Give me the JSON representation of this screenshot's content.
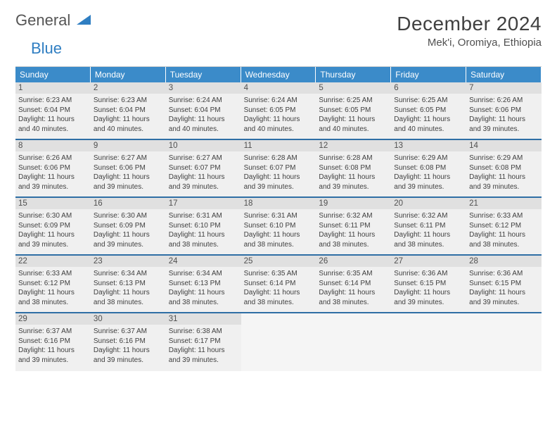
{
  "logo": {
    "general": "General",
    "blue": "Blue"
  },
  "title": "December 2024",
  "location": "Mek'i, Oromiya, Ethiopia",
  "colors": {
    "header_bg": "#3b8bc9",
    "header_text": "#ffffff",
    "cell_bg": "#f0f0f0",
    "daynum_bg": "#e0e0e0",
    "divider": "#2f6fa5",
    "logo_blue": "#2f7ec2"
  },
  "day_labels": [
    "Sunday",
    "Monday",
    "Tuesday",
    "Wednesday",
    "Thursday",
    "Friday",
    "Saturday"
  ],
  "weeks": [
    [
      {
        "n": "1",
        "sunrise": "6:23 AM",
        "sunset": "6:04 PM",
        "daylight": "11 hours and 40 minutes."
      },
      {
        "n": "2",
        "sunrise": "6:23 AM",
        "sunset": "6:04 PM",
        "daylight": "11 hours and 40 minutes."
      },
      {
        "n": "3",
        "sunrise": "6:24 AM",
        "sunset": "6:04 PM",
        "daylight": "11 hours and 40 minutes."
      },
      {
        "n": "4",
        "sunrise": "6:24 AM",
        "sunset": "6:05 PM",
        "daylight": "11 hours and 40 minutes."
      },
      {
        "n": "5",
        "sunrise": "6:25 AM",
        "sunset": "6:05 PM",
        "daylight": "11 hours and 40 minutes."
      },
      {
        "n": "6",
        "sunrise": "6:25 AM",
        "sunset": "6:05 PM",
        "daylight": "11 hours and 40 minutes."
      },
      {
        "n": "7",
        "sunrise": "6:26 AM",
        "sunset": "6:06 PM",
        "daylight": "11 hours and 39 minutes."
      }
    ],
    [
      {
        "n": "8",
        "sunrise": "6:26 AM",
        "sunset": "6:06 PM",
        "daylight": "11 hours and 39 minutes."
      },
      {
        "n": "9",
        "sunrise": "6:27 AM",
        "sunset": "6:06 PM",
        "daylight": "11 hours and 39 minutes."
      },
      {
        "n": "10",
        "sunrise": "6:27 AM",
        "sunset": "6:07 PM",
        "daylight": "11 hours and 39 minutes."
      },
      {
        "n": "11",
        "sunrise": "6:28 AM",
        "sunset": "6:07 PM",
        "daylight": "11 hours and 39 minutes."
      },
      {
        "n": "12",
        "sunrise": "6:28 AM",
        "sunset": "6:08 PM",
        "daylight": "11 hours and 39 minutes."
      },
      {
        "n": "13",
        "sunrise": "6:29 AM",
        "sunset": "6:08 PM",
        "daylight": "11 hours and 39 minutes."
      },
      {
        "n": "14",
        "sunrise": "6:29 AM",
        "sunset": "6:08 PM",
        "daylight": "11 hours and 39 minutes."
      }
    ],
    [
      {
        "n": "15",
        "sunrise": "6:30 AM",
        "sunset": "6:09 PM",
        "daylight": "11 hours and 39 minutes."
      },
      {
        "n": "16",
        "sunrise": "6:30 AM",
        "sunset": "6:09 PM",
        "daylight": "11 hours and 39 minutes."
      },
      {
        "n": "17",
        "sunrise": "6:31 AM",
        "sunset": "6:10 PM",
        "daylight": "11 hours and 38 minutes."
      },
      {
        "n": "18",
        "sunrise": "6:31 AM",
        "sunset": "6:10 PM",
        "daylight": "11 hours and 38 minutes."
      },
      {
        "n": "19",
        "sunrise": "6:32 AM",
        "sunset": "6:11 PM",
        "daylight": "11 hours and 38 minutes."
      },
      {
        "n": "20",
        "sunrise": "6:32 AM",
        "sunset": "6:11 PM",
        "daylight": "11 hours and 38 minutes."
      },
      {
        "n": "21",
        "sunrise": "6:33 AM",
        "sunset": "6:12 PM",
        "daylight": "11 hours and 38 minutes."
      }
    ],
    [
      {
        "n": "22",
        "sunrise": "6:33 AM",
        "sunset": "6:12 PM",
        "daylight": "11 hours and 38 minutes."
      },
      {
        "n": "23",
        "sunrise": "6:34 AM",
        "sunset": "6:13 PM",
        "daylight": "11 hours and 38 minutes."
      },
      {
        "n": "24",
        "sunrise": "6:34 AM",
        "sunset": "6:13 PM",
        "daylight": "11 hours and 38 minutes."
      },
      {
        "n": "25",
        "sunrise": "6:35 AM",
        "sunset": "6:14 PM",
        "daylight": "11 hours and 38 minutes."
      },
      {
        "n": "26",
        "sunrise": "6:35 AM",
        "sunset": "6:14 PM",
        "daylight": "11 hours and 38 minutes."
      },
      {
        "n": "27",
        "sunrise": "6:36 AM",
        "sunset": "6:15 PM",
        "daylight": "11 hours and 39 minutes."
      },
      {
        "n": "28",
        "sunrise": "6:36 AM",
        "sunset": "6:15 PM",
        "daylight": "11 hours and 39 minutes."
      }
    ],
    [
      {
        "n": "29",
        "sunrise": "6:37 AM",
        "sunset": "6:16 PM",
        "daylight": "11 hours and 39 minutes."
      },
      {
        "n": "30",
        "sunrise": "6:37 AM",
        "sunset": "6:16 PM",
        "daylight": "11 hours and 39 minutes."
      },
      {
        "n": "31",
        "sunrise": "6:38 AM",
        "sunset": "6:17 PM",
        "daylight": "11 hours and 39 minutes."
      },
      null,
      null,
      null,
      null
    ]
  ],
  "labels": {
    "sunrise_prefix": "Sunrise: ",
    "sunset_prefix": "Sunset: ",
    "daylight_prefix": "Daylight: "
  }
}
